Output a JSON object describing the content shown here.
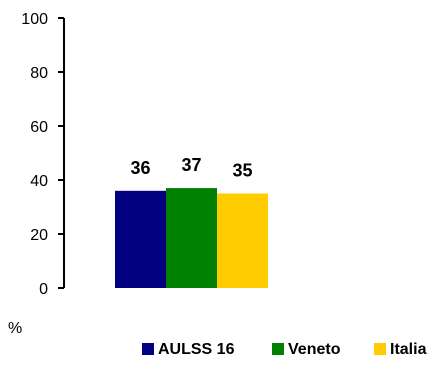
{
  "chart_data": {
    "type": "bar",
    "title": "",
    "xlabel": "",
    "ylabel": "%",
    "ylim": [
      0,
      100
    ],
    "yticks": [
      0,
      20,
      40,
      60,
      80,
      100
    ],
    "grid": false,
    "legend_position": "bottom-right",
    "series": [
      {
        "name": "AULSS 16",
        "values": [
          36
        ],
        "color": "#000080"
      },
      {
        "name": "Veneto",
        "values": [
          37
        ],
        "color": "#008000"
      },
      {
        "name": "Italia",
        "values": [
          35
        ],
        "color": "#FFCC00"
      }
    ]
  }
}
